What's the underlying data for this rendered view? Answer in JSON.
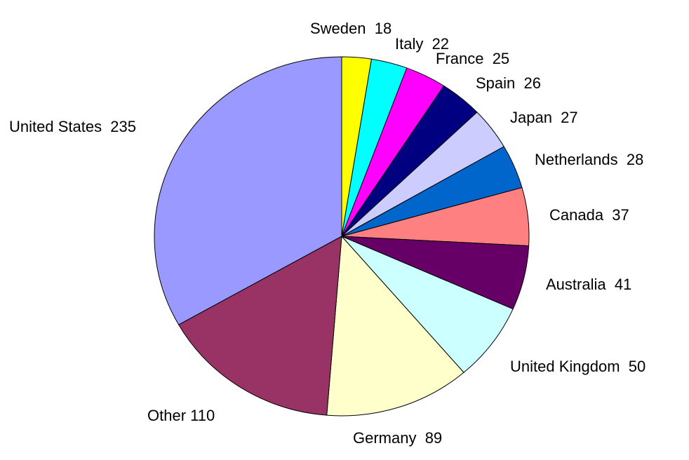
{
  "chart_data": {
    "type": "pie",
    "title": "",
    "start": "top",
    "direction": "clockwise",
    "slices": [
      {
        "label": "Sweden",
        "value": 18,
        "color": "#ffff00"
      },
      {
        "label": "Italy",
        "value": 22,
        "color": "#00ffff"
      },
      {
        "label": "France",
        "value": 25,
        "color": "#ff00ff"
      },
      {
        "label": "Spain",
        "value": 26,
        "color": "#000080"
      },
      {
        "label": "Japan",
        "value": 27,
        "color": "#ccccff"
      },
      {
        "label": "Netherlands",
        "value": 28,
        "color": "#0066cc"
      },
      {
        "label": "Canada",
        "value": 37,
        "color": "#ff8080"
      },
      {
        "label": "Australia",
        "value": 41,
        "color": "#660066"
      },
      {
        "label": "United Kingdom",
        "value": 50,
        "color": "#ccffff"
      },
      {
        "label": "Germany",
        "value": 89,
        "color": "#ffffcc"
      },
      {
        "label": "Other",
        "value": 110,
        "color": "#993366"
      },
      {
        "label": "United States",
        "value": 235,
        "color": "#9999ff"
      }
    ],
    "legend": "none",
    "data_labels": "outside, label and value"
  }
}
